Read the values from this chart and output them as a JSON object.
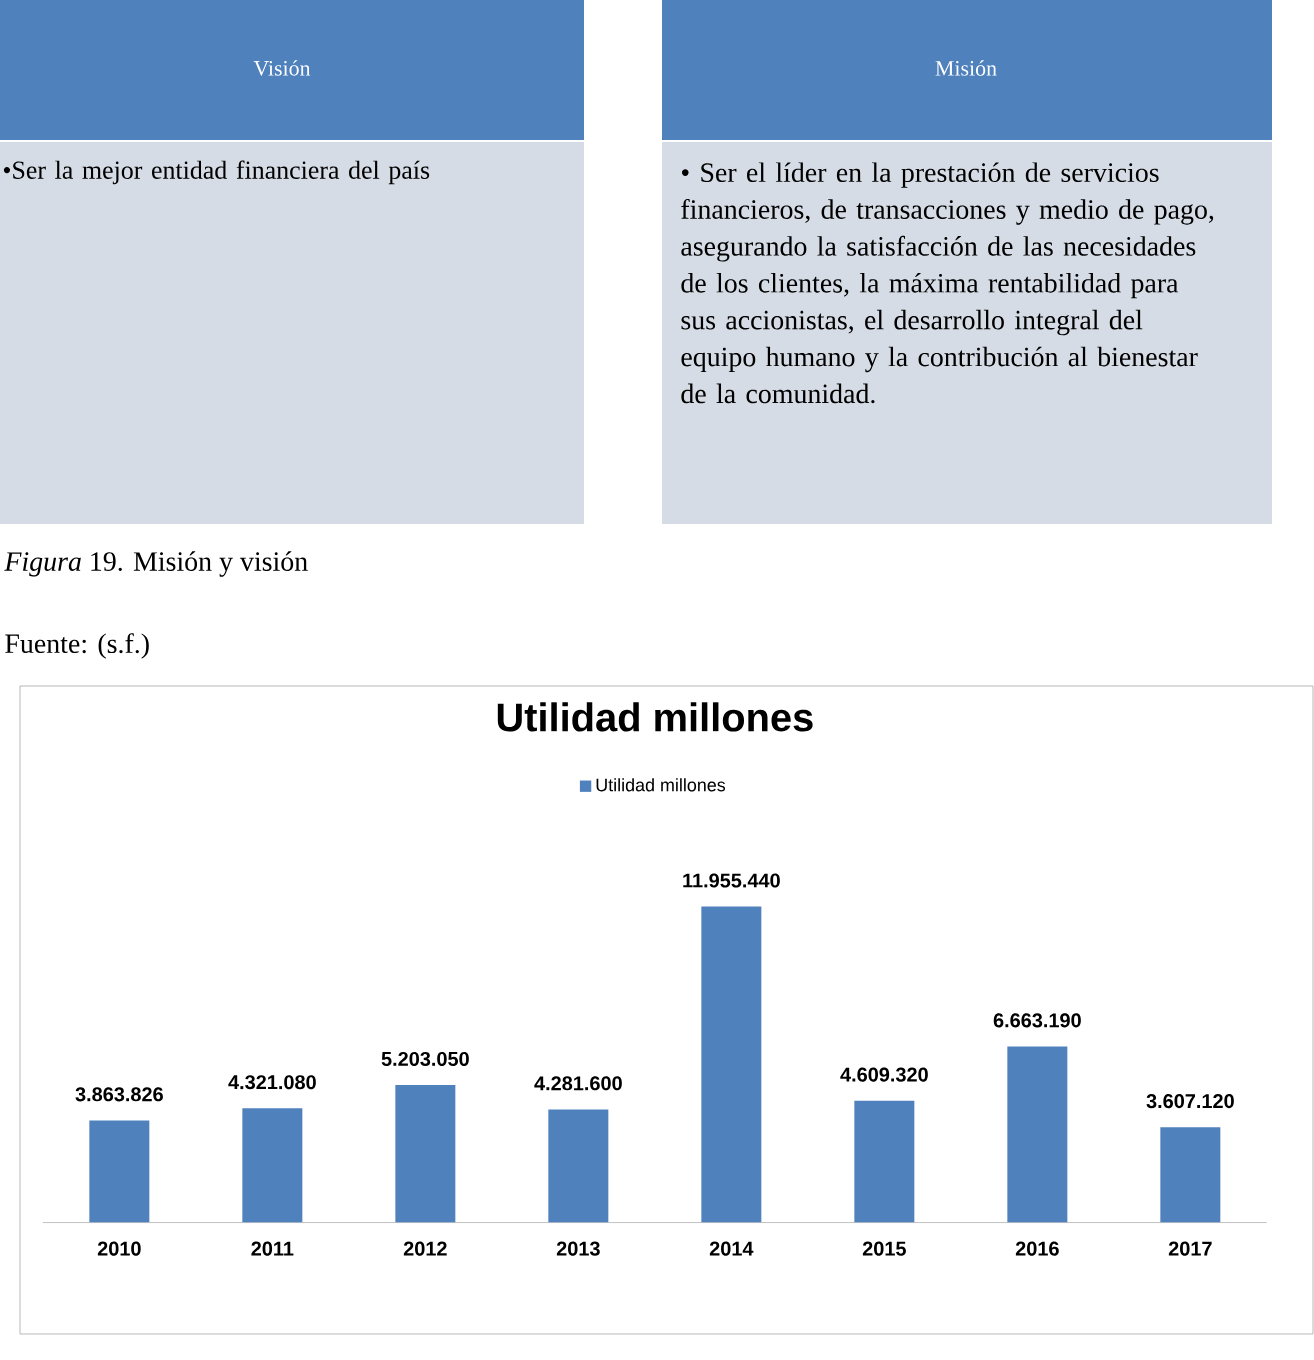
{
  "chart_data": [
    {
      "type": "other",
      "annotations": [
        "Visión",
        "Misión",
        "•Ser la mejor entidad financiera del país",
        "• Ser el líder en la prestación de servicios financieros, de transacciones y medio de pago, asegurando la satisfacción de las necesidades de los clientes, la máxima rentabilidad para sus accionistas, el desarrollo integral del equipo humano y la contribución al bienestar de la comunidad.",
        "*Figura* 19. Misión y visión",
        "Fuente: (s.f.)"
      ]
    },
    {
      "type": "bar",
      "title": "Utilidad millones",
      "categories": [
        "2010",
        "2011",
        "2012",
        "2013",
        "2014",
        "2015",
        "2016",
        "2017"
      ],
      "series": [
        {
          "name": "Utilidad millones",
          "color": "#4f81bd",
          "values": [
            3863826,
            4321080,
            5203050,
            4281600,
            11955440,
            4609320,
            6663190,
            3607120
          ],
          "value_labels": [
            "3.863.826",
            "4.321.080",
            "5.203.050",
            "4.281.600",
            "11.955.440",
            "4.609.320",
            "6.663.190",
            "3.607.120"
          ]
        }
      ],
      "legend": "top"
    }
  ]
}
